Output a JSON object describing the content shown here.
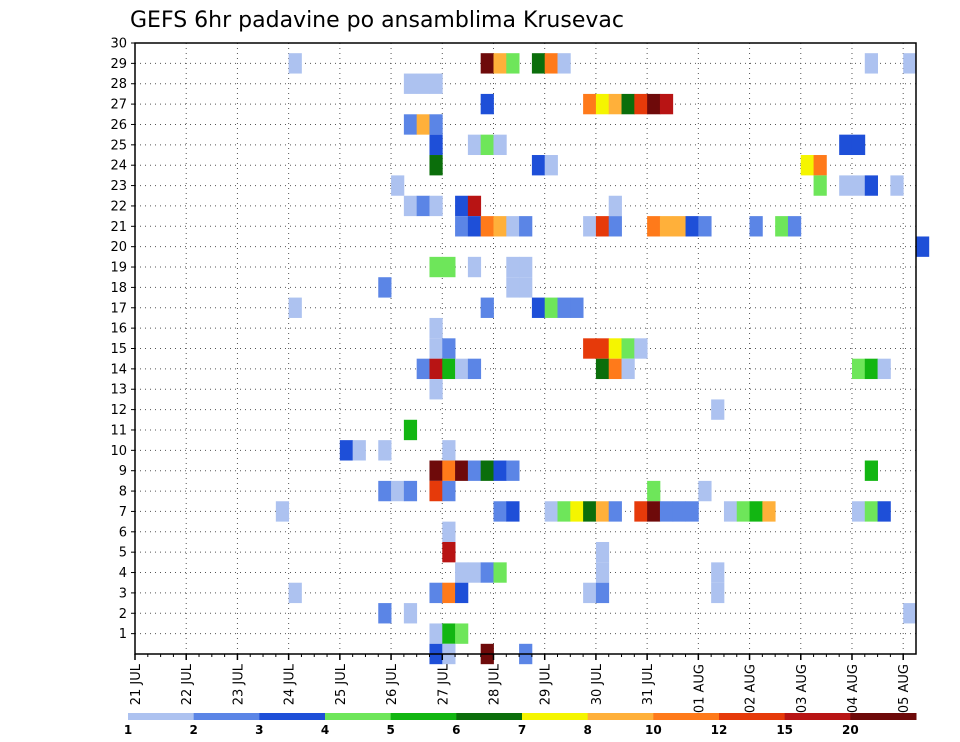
{
  "chart_data": {
    "type": "heatmap",
    "title": "GEFS 6hr padavine po ansamblima Krusevac",
    "xlabel": "",
    "ylabel": "",
    "x_tick_labels": [
      "21 JUL",
      "22 JUL",
      "23 JUL",
      "24 JUL",
      "25 JUL",
      "26 JUL",
      "27 JUL",
      "28 JUL",
      "29 JUL",
      "30 JUL",
      "31 JUL",
      "01 AUG",
      "02 AUG",
      "03 AUG",
      "04 AUG",
      "05 AUG"
    ],
    "x_range": [
      0,
      61
    ],
    "y_range": [
      0,
      30
    ],
    "y_ticks": [
      1,
      2,
      3,
      4,
      5,
      6,
      7,
      8,
      9,
      10,
      11,
      12,
      13,
      14,
      15,
      16,
      17,
      18,
      19,
      20,
      21,
      22,
      23,
      24,
      25,
      26,
      27,
      28,
      29,
      30
    ],
    "grid": "dotted",
    "legend": {
      "placement": "bottom",
      "thresholds": [
        "1",
        "2",
        "3",
        "4",
        "5",
        "6",
        "7",
        "8",
        "10",
        "12",
        "15",
        "20"
      ],
      "colors": [
        "#adc2f0",
        "#5b85e6",
        "#1e4fd8",
        "#6ee65a",
        "#12b612",
        "#0b6e0b",
        "#f5f500",
        "#ffb03a",
        "#ff7a1a",
        "#e63a0a",
        "#b81414",
        "#6e0a0a"
      ]
    },
    "cells": [
      [
        12,
        29,
        1
      ],
      [
        27,
        29,
        12
      ],
      [
        28,
        29,
        8
      ],
      [
        29,
        29,
        4
      ],
      [
        31,
        29,
        6
      ],
      [
        32,
        29,
        9
      ],
      [
        33,
        29,
        1
      ],
      [
        57,
        29,
        1
      ],
      [
        60,
        29,
        1
      ],
      [
        21,
        28,
        1
      ],
      [
        22,
        28,
        1
      ],
      [
        23,
        28,
        1
      ],
      [
        27,
        27,
        3
      ],
      [
        35,
        27,
        9
      ],
      [
        36,
        27,
        7
      ],
      [
        37,
        27,
        8
      ],
      [
        38,
        27,
        6
      ],
      [
        39,
        27,
        10
      ],
      [
        40,
        27,
        12
      ],
      [
        41,
        27,
        11
      ],
      [
        21,
        26,
        2
      ],
      [
        22,
        26,
        8
      ],
      [
        23,
        26,
        2
      ],
      [
        23,
        25,
        3
      ],
      [
        26,
        25,
        1
      ],
      [
        27,
        25,
        4
      ],
      [
        28,
        25,
        1
      ],
      [
        55,
        25,
        3
      ],
      [
        56,
        25,
        3
      ],
      [
        23,
        24,
        6
      ],
      [
        31,
        24,
        3
      ],
      [
        32,
        24,
        1
      ],
      [
        52,
        24,
        7
      ],
      [
        53,
        24,
        9
      ],
      [
        20,
        23,
        1
      ],
      [
        53,
        23,
        4
      ],
      [
        55,
        23,
        1
      ],
      [
        56,
        23,
        1
      ],
      [
        57,
        23,
        3
      ],
      [
        59,
        23,
        1
      ],
      [
        21,
        22,
        1
      ],
      [
        22,
        22,
        2
      ],
      [
        23,
        22,
        1
      ],
      [
        25,
        22,
        3
      ],
      [
        26,
        22,
        11
      ],
      [
        37,
        22,
        1
      ],
      [
        25,
        21,
        2
      ],
      [
        26,
        21,
        3
      ],
      [
        27,
        21,
        9
      ],
      [
        28,
        21,
        8
      ],
      [
        29,
        21,
        1
      ],
      [
        30,
        21,
        2
      ],
      [
        35,
        21,
        1
      ],
      [
        36,
        21,
        10
      ],
      [
        37,
        21,
        2
      ],
      [
        40,
        21,
        9
      ],
      [
        41,
        21,
        8
      ],
      [
        42,
        21,
        8
      ],
      [
        43,
        21,
        3
      ],
      [
        44,
        21,
        2
      ],
      [
        48,
        21,
        2
      ],
      [
        50,
        21,
        4
      ],
      [
        51,
        21,
        2
      ],
      [
        61,
        20,
        3
      ],
      [
        23,
        19,
        4
      ],
      [
        24,
        19,
        4
      ],
      [
        26,
        19,
        1
      ],
      [
        29,
        19,
        1
      ],
      [
        30,
        19,
        1
      ],
      [
        29,
        18,
        1
      ],
      [
        30,
        18,
        1
      ],
      [
        19,
        18,
        2
      ],
      [
        12,
        17,
        1
      ],
      [
        27,
        17,
        2
      ],
      [
        31,
        17,
        3
      ],
      [
        32,
        17,
        4
      ],
      [
        33,
        17,
        2
      ],
      [
        34,
        17,
        2
      ],
      [
        23,
        16,
        1
      ],
      [
        23,
        15,
        1
      ],
      [
        24,
        15,
        2
      ],
      [
        35,
        15,
        10
      ],
      [
        36,
        15,
        10
      ],
      [
        37,
        15,
        7
      ],
      [
        38,
        15,
        4
      ],
      [
        39,
        15,
        1
      ],
      [
        22,
        14,
        2
      ],
      [
        23,
        14,
        11
      ],
      [
        24,
        14,
        5
      ],
      [
        25,
        14,
        1
      ],
      [
        26,
        14,
        2
      ],
      [
        36,
        14,
        6
      ],
      [
        37,
        14,
        9
      ],
      [
        38,
        14,
        1
      ],
      [
        56,
        14,
        4
      ],
      [
        57,
        14,
        5
      ],
      [
        58,
        14,
        1
      ],
      [
        23,
        13,
        1
      ],
      [
        45,
        12,
        1
      ],
      [
        21,
        11,
        5
      ],
      [
        16,
        10,
        3
      ],
      [
        17,
        10,
        1
      ],
      [
        19,
        10,
        1
      ],
      [
        24,
        10,
        1
      ],
      [
        23,
        9,
        12
      ],
      [
        24,
        9,
        9
      ],
      [
        25,
        9,
        12
      ],
      [
        26,
        9,
        2
      ],
      [
        27,
        9,
        6
      ],
      [
        28,
        9,
        3
      ],
      [
        29,
        9,
        2
      ],
      [
        57,
        9,
        5
      ],
      [
        19,
        8,
        2
      ],
      [
        20,
        8,
        1
      ],
      [
        21,
        8,
        2
      ],
      [
        23,
        8,
        10
      ],
      [
        24,
        8,
        2
      ],
      [
        40,
        8,
        4
      ],
      [
        44,
        8,
        1
      ],
      [
        11,
        7,
        1
      ],
      [
        28,
        7,
        2
      ],
      [
        29,
        7,
        3
      ],
      [
        32,
        7,
        1
      ],
      [
        33,
        7,
        4
      ],
      [
        34,
        7,
        7
      ],
      [
        35,
        7,
        6
      ],
      [
        36,
        7,
        8
      ],
      [
        37,
        7,
        2
      ],
      [
        39,
        7,
        10
      ],
      [
        40,
        7,
        12
      ],
      [
        41,
        7,
        2
      ],
      [
        42,
        7,
        2
      ],
      [
        43,
        7,
        2
      ],
      [
        46,
        7,
        1
      ],
      [
        47,
        7,
        4
      ],
      [
        48,
        7,
        5
      ],
      [
        49,
        7,
        8
      ],
      [
        56,
        7,
        1
      ],
      [
        57,
        7,
        4
      ],
      [
        58,
        7,
        3
      ],
      [
        24,
        6,
        1
      ],
      [
        24,
        5,
        11
      ],
      [
        36,
        5,
        1
      ],
      [
        25,
        4,
        1
      ],
      [
        26,
        4,
        1
      ],
      [
        27,
        4,
        2
      ],
      [
        28,
        4,
        4
      ],
      [
        36,
        4,
        1
      ],
      [
        45,
        4,
        1
      ],
      [
        12,
        3,
        1
      ],
      [
        23,
        3,
        2
      ],
      [
        24,
        3,
        9
      ],
      [
        25,
        3,
        3
      ],
      [
        35,
        3,
        1
      ],
      [
        36,
        3,
        2
      ],
      [
        45,
        3,
        1
      ],
      [
        19,
        2,
        2
      ],
      [
        21,
        2,
        1
      ],
      [
        60,
        2,
        1
      ],
      [
        23,
        1,
        1
      ],
      [
        24,
        1,
        5
      ],
      [
        25,
        1,
        4
      ],
      [
        23,
        0,
        3
      ],
      [
        24,
        0,
        1
      ],
      [
        27,
        0,
        12
      ],
      [
        30,
        0,
        2
      ]
    ]
  }
}
